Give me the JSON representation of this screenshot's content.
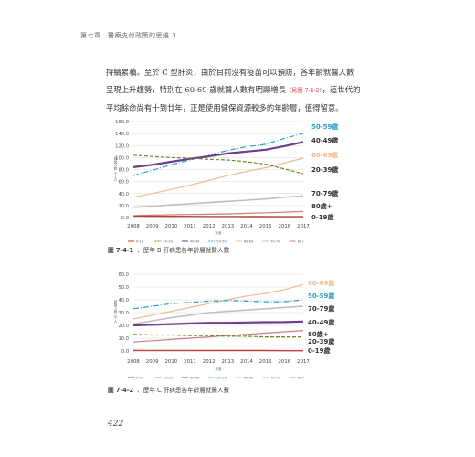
{
  "header": {
    "text": "第七章　醫療支付政策的思維 3"
  },
  "body": {
    "line1": "持續累積。至於 C 型肝炎，由於目前沒有疫苗可以預防，各年齡就醫人數",
    "line2a": "呈現上升趨勢，特別在 60-69 歲就醫人數有明顯增長",
    "line2_ref": "（見圖 7-4-2）",
    "line2b": "，這世代的",
    "line3": "平均餘命尚有十到廿年，正是使用健保資源較多的年齡層，值得留意。"
  },
  "colors": {
    "50-59": "#2f9ec7",
    "40-49": "#6a3f8f",
    "60-69": "#f1b98a",
    "20-39": "#7f7f1f",
    "70-79": "#bfbfbf",
    "80+": "#c87f7f",
    "0-19": "#c0392b"
  },
  "chart_data": [
    {
      "type": "line",
      "caption_num": "圖 7-4-1",
      "caption_text": "、歷年 B 肝病患各年齡層就醫人數",
      "ylabel": "就醫人數（千人）",
      "xlabel": "年度",
      "ylim": [
        0,
        160
      ],
      "yticks": [
        "0.0",
        "20.0",
        "40.0",
        "60.0",
        "80.0",
        "100.0",
        "120.0",
        "140.0",
        "160.0"
      ],
      "x": [
        "2008",
        "2009",
        "2010",
        "2011",
        "2012",
        "2013",
        "2014",
        "2015",
        "2016",
        "2017"
      ],
      "legend": [
        "0-19",
        "20-39",
        "40-49",
        "50-59",
        "60-69",
        "70-79",
        "80+"
      ],
      "series": [
        {
          "name": "50-59",
          "label": "50-59歲",
          "color_key": "50-59",
          "dash": "6,2,1,2",
          "width": 1.2,
          "values": [
            70,
            79,
            88,
            96,
            104,
            112,
            118,
            122,
            132,
            140
          ]
        },
        {
          "name": "40-49",
          "label": "40-49歲",
          "color_key": "40-49",
          "dash": "",
          "width": 2.2,
          "values": [
            84,
            88,
            93,
            98,
            102,
            107,
            110,
            113,
            119,
            126
          ]
        },
        {
          "name": "60-69",
          "label": "60-69歲",
          "color_key": "60-69",
          "dash": "",
          "width": 1.2,
          "values": [
            34,
            40,
            47,
            54,
            62,
            70,
            77,
            83,
            91,
            99
          ]
        },
        {
          "name": "20-39",
          "label": "20-39歲",
          "color_key": "20-39",
          "dash": "4,2",
          "width": 1.2,
          "values": [
            104,
            102,
            100,
            99,
            97,
            96,
            93,
            89,
            81,
            73
          ]
        },
        {
          "name": "70-79",
          "label": "70-79歲",
          "color_key": "70-79",
          "dash": "",
          "width": 1.6,
          "values": [
            17,
            19,
            21,
            23,
            25,
            27,
            29,
            31,
            34,
            36
          ]
        },
        {
          "name": "80+",
          "label": "80歲+",
          "color_key": "80+",
          "dash": "",
          "width": 1.2,
          "values": [
            3,
            4,
            4.5,
            5,
            5.5,
            6,
            7,
            8,
            9,
            10
          ]
        },
        {
          "name": "0-19",
          "label": "0-19歲",
          "color_key": "0-19",
          "dash": "",
          "width": 1.2,
          "values": [
            2.5,
            2.3,
            2.1,
            2,
            1.9,
            1.8,
            1.7,
            1.6,
            1.5,
            1.5
          ]
        }
      ]
    },
    {
      "type": "line",
      "caption_num": "圖 7-4-2",
      "caption_text": "、歷年 C 肝病患各年齡層就醫人數",
      "ylabel": "就醫人數（千人）",
      "xlabel": "年度",
      "ylim": [
        0,
        60
      ],
      "yticks": [
        "0.0",
        "10.0",
        "20.0",
        "30.0",
        "40.0",
        "50.0",
        "60.0"
      ],
      "x": [
        "2008",
        "2009",
        "2010",
        "2011",
        "2012",
        "2013",
        "2014",
        "2015",
        "2016",
        "2017"
      ],
      "legend": [
        "0-19",
        "20-39",
        "40-49",
        "50-59",
        "60-69",
        "70-79",
        "80+"
      ],
      "series": [
        {
          "name": "60-69",
          "label": "60-69歲",
          "color_key": "60-69",
          "dash": "",
          "width": 1.2,
          "values": [
            25,
            28,
            31,
            34,
            37,
            40,
            43,
            45,
            48,
            52
          ]
        },
        {
          "name": "50-59",
          "label": "50-59歲",
          "color_key": "50-59",
          "dash": "6,2,1,2",
          "width": 1.2,
          "values": [
            33,
            35,
            37,
            38,
            39,
            39.5,
            39,
            38.5,
            38.5,
            40
          ]
        },
        {
          "name": "70-79",
          "label": "70-79歲",
          "color_key": "70-79",
          "dash": "",
          "width": 1.6,
          "values": [
            21,
            23.5,
            26,
            28,
            30,
            31,
            32,
            33,
            34,
            35
          ]
        },
        {
          "name": "40-49",
          "label": "40-49歲",
          "color_key": "40-49",
          "dash": "",
          "width": 2.2,
          "values": [
            20,
            20.5,
            21,
            21.5,
            22,
            22,
            22.3,
            22.5,
            22.6,
            23
          ]
        },
        {
          "name": "80+",
          "label": "80歲+",
          "color_key": "80+",
          "dash": "",
          "width": 1.2,
          "values": [
            7,
            8,
            9,
            10,
            11,
            12,
            13,
            14,
            15,
            16
          ]
        },
        {
          "name": "20-39",
          "label": "20-39歲",
          "color_key": "20-39",
          "dash": "4,2",
          "width": 1.2,
          "values": [
            13,
            12.5,
            12.5,
            12,
            12,
            11.5,
            11.5,
            11,
            11,
            11
          ]
        },
        {
          "name": "0-19",
          "label": "0-19歲",
          "color_key": "0-19",
          "dash": "",
          "width": 1.2,
          "values": [
            0.6,
            0.5,
            0.5,
            0.5,
            0.4,
            0.4,
            0.4,
            0.4,
            0.3,
            0.3
          ]
        }
      ]
    }
  ],
  "page_number": "422"
}
